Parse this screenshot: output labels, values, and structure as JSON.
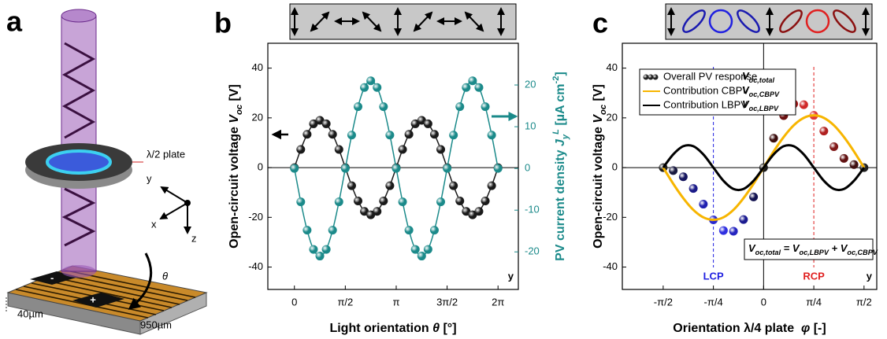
{
  "panel_labels": [
    "a",
    "b",
    "c"
  ],
  "schematic": {
    "plate_label": "λ/2 plate",
    "axes": [
      "y",
      "x",
      "z"
    ],
    "angle": "θ",
    "pads": [
      "-",
      "+"
    ],
    "dimensions": [
      "40µm",
      "950µm"
    ]
  },
  "chart_data": [
    {
      "type": "line",
      "x": [
        0,
        0.1963,
        0.3927,
        0.589,
        0.7854,
        0.9817,
        1.1781,
        1.3744,
        1.5708,
        1.7671,
        1.9635,
        2.1598,
        2.3562,
        2.5525,
        2.7489,
        2.9452,
        3.1416,
        3.3379,
        3.5343,
        3.7306,
        3.927,
        4.1233,
        4.3197,
        4.516,
        4.7124,
        4.9087,
        5.1051,
        5.3014,
        5.4978,
        5.6941,
        5.8905,
        6.0868,
        6.2832
      ],
      "xlim": [
        -0.82,
        6.91
      ],
      "xticks": [
        0,
        {
          "value": 1.5708,
          "label": "π/2"
        },
        {
          "value": 3.1416,
          "label": "π"
        },
        {
          "value": 4.7124,
          "label": "3π/2"
        },
        {
          "value": 6.2832,
          "label": "2π"
        }
      ],
      "ylim": [
        -49,
        50
      ],
      "yticks": [
        -40,
        -20,
        0,
        20,
        40
      ],
      "y2lim": [
        -29,
        30
      ],
      "y2ticks": [
        -20,
        -10,
        0,
        10,
        20
      ],
      "origin_lines": [
        "y"
      ],
      "xlabel": [
        {
          "t": "Light orientation "
        },
        {
          "t": "θ",
          "s": "italic"
        },
        {
          "t": " [°]"
        }
      ],
      "ylabel": [
        {
          "t": "Open-circuit voltage "
        },
        {
          "t": "V",
          "s": "italic"
        },
        {
          "t": "oc",
          "s": "sub italic"
        },
        {
          "t": " [V]"
        }
      ],
      "y2label": [
        {
          "t": "PV current density "
        },
        {
          "t": "J",
          "s": "italic"
        },
        {
          "t": "y",
          "s": "sub italic"
        },
        {
          "t": "L",
          "s": "sup italic"
        },
        {
          "t": " [µA cm"
        },
        {
          "t": "-2",
          "s": "sup"
        },
        {
          "t": "]"
        }
      ],
      "corner_label": "y",
      "series": [
        {
          "color": "#1a1a1a",
          "style": "line+points",
          "values": [
            0,
            7.3,
            13.4,
            17.6,
            19,
            17.6,
            13.4,
            7.3,
            0,
            -7.3,
            -13.4,
            -17.6,
            -19,
            -17.6,
            -13.4,
            -7.3,
            0,
            7.3,
            13.4,
            17.6,
            19,
            17.6,
            13.4,
            7.3,
            0,
            -7.3,
            -13.4,
            -17.6,
            -19,
            -17.6,
            -13.4,
            -7.3,
            0
          ]
        },
        {
          "color": "#1b8a8a",
          "style": "line+points",
          "axis": "y2",
          "values": [
            0,
            -8,
            -14.8,
            -19.4,
            -21,
            -19.4,
            -14.8,
            -8,
            0,
            8,
            14.8,
            19.4,
            21,
            19.4,
            14.8,
            8,
            0,
            -8,
            -14.8,
            -19.4,
            -21,
            -19.4,
            -14.8,
            -8,
            0,
            8,
            14.8,
            19.4,
            21,
            19.4,
            14.8,
            8,
            0
          ]
        }
      ]
    },
    {
      "type": "line",
      "x": [
        -1.5708,
        -1.4137,
        -1.2566,
        -1.0996,
        -0.9425,
        -0.7854,
        -0.6283,
        -0.4712,
        -0.3142,
        -0.1571,
        0,
        0.1571,
        0.3142,
        0.4712,
        0.6283,
        0.7854,
        0.9425,
        1.0996,
        1.2566,
        1.4137,
        1.5708
      ],
      "xlim": [
        -2.21,
        1.77
      ],
      "xticks": [
        {
          "value": -1.5708,
          "label": "-π/2"
        },
        {
          "value": -0.7854,
          "label": "-π/4"
        },
        0,
        {
          "value": 0.7854,
          "label": "π/4"
        },
        {
          "value": 1.5708,
          "label": "π/2"
        }
      ],
      "ylim": [
        -49,
        50
      ],
      "yticks": [
        -40,
        -20,
        0,
        20,
        40
      ],
      "origin_lines": [
        "x",
        "y"
      ],
      "xlabel": [
        {
          "t": "Orientation λ/4 plate  "
        },
        {
          "t": "φ",
          "s": "italic"
        },
        {
          "t": " [-]"
        }
      ],
      "ylabel": [
        {
          "t": "Open-circuit voltage "
        },
        {
          "t": "V",
          "s": "italic"
        },
        {
          "t": "oc",
          "s": "sub italic"
        },
        {
          "t": " [V]"
        }
      ],
      "corner_label": "y",
      "legend": "upper left",
      "series": [
        {
          "name": "Overall PV response",
          "symbol_label": [
            {
              "t": "V",
              "s": "italic"
            },
            {
              "t": "oc,total",
              "s": "sub italic"
            }
          ],
          "style": "points",
          "colors": [
            "#202020",
            "#1a1a40",
            "#15155e",
            "#1a1a88",
            "#2020b0",
            "#2a2ad0",
            "#3030e0",
            "#2525c0",
            "#1b1b90",
            "#121250",
            "#1a1a1a",
            "#3a0c0c",
            "#6a1010",
            "#a01818",
            "#d02828",
            "#e03838",
            "#b02020",
            "#801818",
            "#601010",
            "#401010",
            "#202020"
          ],
          "values": [
            0,
            -1.2,
            -3.7,
            -8.4,
            -14.7,
            -21,
            -25.3,
            -25.6,
            -20.9,
            -11.8,
            0,
            11.8,
            20.9,
            25.6,
            25.3,
            21,
            14.7,
            8.4,
            3.7,
            1.2,
            0
          ]
        },
        {
          "name": "Contribution CBPV",
          "symbol_label": [
            {
              "t": "V",
              "s": "italic"
            },
            {
              "t": "oc,CBPV",
              "s": "sub italic"
            }
          ],
          "style": "line",
          "color": "#f7b500",
          "values": [
            0,
            -6.5,
            -12.3,
            -17,
            -20,
            -21,
            -20,
            -17,
            -12.3,
            -6.5,
            0,
            6.5,
            12.3,
            17,
            20,
            21,
            20,
            17,
            12.3,
            6.5,
            0
          ]
        },
        {
          "name": "Contribution LBPV",
          "symbol_label": [
            {
              "t": "V",
              "s": "italic"
            },
            {
              "t": "oc,LBPV",
              "s": "sub italic"
            }
          ],
          "style": "line",
          "color": "#000000",
          "values": [
            0,
            5.3,
            8.6,
            8.6,
            5.3,
            0,
            -5.3,
            -8.6,
            -8.6,
            -5.3,
            0,
            5.3,
            8.6,
            8.6,
            5.3,
            0,
            -5.3,
            -8.6,
            -8.6,
            -5.3,
            0
          ]
        }
      ],
      "vlines": [
        {
          "x": -0.7854,
          "label": "LCP",
          "color": "#1f1fe0"
        },
        {
          "x": 0.7854,
          "label": "RCP",
          "color": "#e02020"
        }
      ],
      "equation": [
        {
          "t": "V",
          "s": "italic"
        },
        {
          "t": "oc,total",
          "s": "sub italic"
        },
        {
          "t": " = ",
          "s": "italic"
        },
        {
          "t": "V",
          "s": "italic"
        },
        {
          "t": "oc,LBPV",
          "s": "sub italic"
        },
        {
          "t": " + ",
          "s": "italic"
        },
        {
          "t": "V",
          "s": "italic"
        },
        {
          "t": "oc,CBPV",
          "s": "sub italic"
        }
      ]
    }
  ]
}
